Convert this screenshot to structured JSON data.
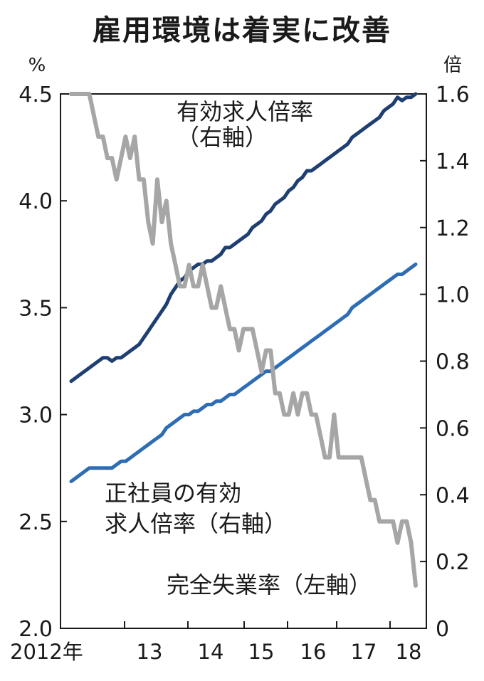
{
  "title": "雇用環境は着実に改善",
  "chart_data": {
    "type": "line",
    "left_axis": {
      "unit": "%",
      "range": [
        2.0,
        4.5
      ],
      "ticks": [
        "2.0",
        "2.5",
        "3.0",
        "3.5",
        "4.0",
        "4.5"
      ]
    },
    "right_axis": {
      "unit": "倍",
      "range": [
        0,
        1.6
      ],
      "ticks": [
        "0",
        "0.2",
        "0.4",
        "0.6",
        "0.8",
        "1.0",
        "1.2",
        "1.4",
        "1.6"
      ]
    },
    "x_axis": {
      "labels": [
        "2012年",
        "13",
        "14",
        "15",
        "16",
        "17",
        "18"
      ]
    },
    "annotations": {
      "jobs_ratio": [
        "有効求人倍率",
        "（右軸）"
      ],
      "regular_ratio": [
        "正社員の有効",
        "求人倍率（右軸）"
      ],
      "unemployment": [
        "完全失業率（左軸）"
      ]
    },
    "series": [
      {
        "key": "jobs_ratio",
        "axis": "right",
        "color": "#1f3f73",
        "values": [
          0.74,
          0.75,
          0.76,
          0.77,
          0.78,
          0.79,
          0.8,
          0.81,
          0.81,
          0.8,
          0.81,
          0.81,
          0.82,
          0.83,
          0.84,
          0.85,
          0.87,
          0.89,
          0.91,
          0.93,
          0.95,
          0.97,
          1.0,
          1.02,
          1.04,
          1.05,
          1.07,
          1.08,
          1.09,
          1.09,
          1.1,
          1.1,
          1.11,
          1.12,
          1.14,
          1.14,
          1.15,
          1.16,
          1.17,
          1.18,
          1.2,
          1.21,
          1.22,
          1.24,
          1.25,
          1.27,
          1.28,
          1.29,
          1.31,
          1.32,
          1.34,
          1.35,
          1.37,
          1.37,
          1.38,
          1.39,
          1.4,
          1.41,
          1.42,
          1.43,
          1.44,
          1.45,
          1.47,
          1.48,
          1.49,
          1.5,
          1.51,
          1.52,
          1.53,
          1.55,
          1.56,
          1.57,
          1.59,
          1.58,
          1.59,
          1.59,
          1.6
        ]
      },
      {
        "key": "regular_ratio",
        "axis": "right",
        "color": "#2e6db3",
        "values": [
          0.44,
          0.45,
          0.46,
          0.47,
          0.48,
          0.48,
          0.48,
          0.48,
          0.48,
          0.48,
          0.49,
          0.5,
          0.5,
          0.51,
          0.52,
          0.53,
          0.54,
          0.55,
          0.56,
          0.57,
          0.58,
          0.6,
          0.61,
          0.62,
          0.63,
          0.64,
          0.64,
          0.65,
          0.65,
          0.66,
          0.67,
          0.67,
          0.68,
          0.68,
          0.69,
          0.7,
          0.7,
          0.71,
          0.72,
          0.73,
          0.74,
          0.75,
          0.76,
          0.77,
          0.77,
          0.78,
          0.79,
          0.8,
          0.81,
          0.82,
          0.83,
          0.84,
          0.85,
          0.86,
          0.87,
          0.88,
          0.89,
          0.9,
          0.91,
          0.92,
          0.93,
          0.94,
          0.96,
          0.97,
          0.98,
          0.99,
          1.0,
          1.01,
          1.02,
          1.03,
          1.04,
          1.05,
          1.06,
          1.06,
          1.07,
          1.08,
          1.09
        ]
      },
      {
        "key": "unemployment",
        "axis": "left",
        "color": "#a6a6a6",
        "values": [
          4.5,
          4.5,
          4.5,
          4.5,
          4.5,
          4.4,
          4.3,
          4.3,
          4.2,
          4.2,
          4.1,
          4.2,
          4.3,
          4.2,
          4.3,
          4.1,
          4.1,
          3.9,
          3.8,
          4.1,
          3.9,
          4.0,
          3.8,
          3.7,
          3.6,
          3.6,
          3.7,
          3.6,
          3.6,
          3.7,
          3.6,
          3.5,
          3.5,
          3.6,
          3.5,
          3.4,
          3.4,
          3.3,
          3.4,
          3.4,
          3.4,
          3.3,
          3.2,
          3.3,
          3.3,
          3.1,
          3.1,
          3.0,
          3.0,
          3.1,
          3.0,
          3.1,
          3.1,
          3.0,
          3.0,
          2.9,
          2.8,
          2.8,
          3.0,
          2.8,
          2.8,
          2.8,
          2.8,
          2.8,
          2.8,
          2.7,
          2.6,
          2.6,
          2.5,
          2.5,
          2.5,
          2.5,
          2.4,
          2.5,
          2.5,
          2.4,
          2.2
        ]
      }
    ]
  }
}
